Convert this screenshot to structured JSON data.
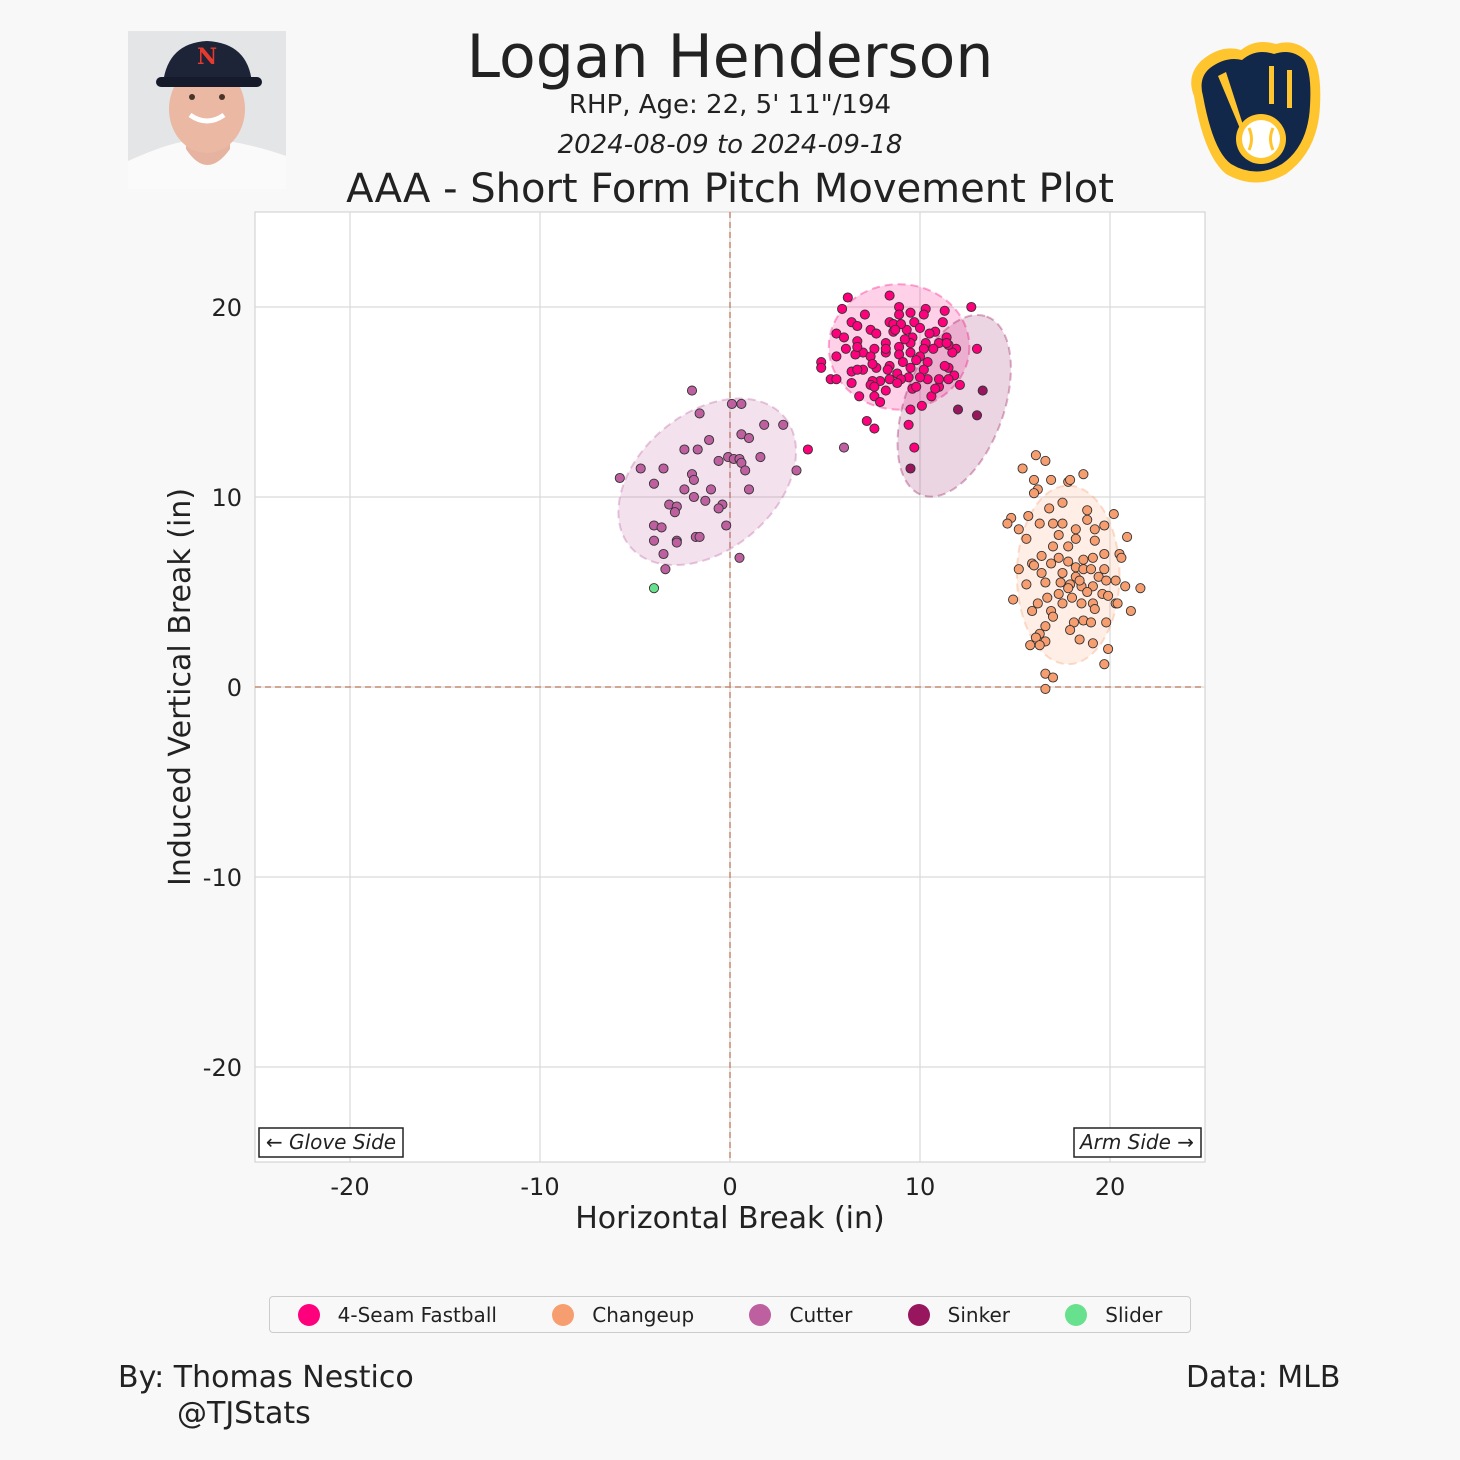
{
  "header": {
    "title": "Logan Henderson",
    "subtitle": "RHP, Age: 22, 5' 11\"/194",
    "date_range": "2024-08-09 to 2024-09-18",
    "plot_title": "AAA - Short Form Pitch Movement Plot",
    "headshot_alt": "player headshot",
    "team_logo": "Milwaukee Brewers ball-in-glove logo"
  },
  "footer": {
    "credit_line1": "By: Thomas Nestico",
    "credit_line2": "@TJStats",
    "source": "Data: MLB"
  },
  "chart_data": {
    "type": "scatter",
    "title": "AAA - Short Form Pitch Movement Plot",
    "xlabel": "Horizontal Break (in)",
    "ylabel": "Induced Vertical Break (in)",
    "xlim": [
      -25,
      25
    ],
    "ylim": [
      -25,
      25
    ],
    "xticks": [
      -20,
      -10,
      0,
      10,
      20
    ],
    "yticks": [
      -20,
      -10,
      0,
      10,
      20
    ],
    "grid": true,
    "reference_lines": {
      "x": 0,
      "y": 0,
      "color": "#c98a70"
    },
    "annotations": {
      "left": "← Glove Side",
      "right": "Arm Side →"
    },
    "legend_position": "bottom",
    "series": [
      {
        "name": "4-Seam Fastball",
        "color": "#FF007D",
        "ellipse": {
          "cx": 8.9,
          "cy": 17.9,
          "rx": 3.7,
          "ry": 3.3,
          "angle": 0
        },
        "points": [
          [
            6.2,
            20.5
          ],
          [
            8.4,
            20.6
          ],
          [
            5.9,
            19.9
          ],
          [
            12.7,
            20.0
          ],
          [
            7.1,
            19.6
          ],
          [
            6.4,
            19.2
          ],
          [
            6.7,
            19.0
          ],
          [
            5.6,
            18.6
          ],
          [
            6.0,
            18.4
          ],
          [
            4.8,
            17.1
          ],
          [
            4.8,
            16.8
          ],
          [
            5.3,
            16.2
          ],
          [
            5.6,
            16.2
          ],
          [
            5.6,
            17.4
          ],
          [
            6.1,
            17.8
          ],
          [
            6.7,
            18.2
          ],
          [
            6.4,
            16.6
          ],
          [
            6.4,
            16.0
          ],
          [
            6.8,
            15.3
          ],
          [
            7.2,
            14.0
          ],
          [
            7.6,
            13.6
          ],
          [
            7.6,
            15.3
          ],
          [
            7.9,
            15.0
          ],
          [
            8.2,
            15.6
          ],
          [
            9.5,
            14.6
          ],
          [
            9.4,
            13.8
          ],
          [
            9.7,
            12.6
          ],
          [
            10.1,
            14.8
          ],
          [
            10.6,
            15.3
          ],
          [
            11.0,
            15.8
          ],
          [
            12.1,
            15.9
          ],
          [
            13.0,
            17.8
          ],
          [
            11.8,
            16.4
          ],
          [
            11.5,
            16.8
          ],
          [
            11.9,
            17.8
          ],
          [
            11.3,
            19.8
          ],
          [
            11.2,
            19.2
          ],
          [
            10.3,
            19.9
          ],
          [
            8.9,
            20.0
          ],
          [
            7.4,
            18.8
          ],
          [
            8.4,
            19.2
          ],
          [
            8.9,
            19.6
          ],
          [
            9.5,
            19.7
          ],
          [
            10.2,
            19.6
          ],
          [
            9.7,
            19.2
          ],
          [
            9.3,
            18.8
          ],
          [
            8.6,
            18.7
          ],
          [
            7.7,
            18.6
          ],
          [
            8.2,
            18.1
          ],
          [
            8.9,
            17.9
          ],
          [
            9.6,
            18.4
          ],
          [
            10.3,
            18.1
          ],
          [
            10.8,
            18.7
          ],
          [
            11.4,
            18.4
          ],
          [
            11.0,
            18.1
          ],
          [
            10.7,
            17.8
          ],
          [
            10.2,
            17.8
          ],
          [
            9.5,
            18.1
          ],
          [
            7.6,
            17.8
          ],
          [
            7.0,
            17.6
          ],
          [
            6.6,
            17.5
          ],
          [
            7.4,
            17.4
          ],
          [
            8.2,
            17.6
          ],
          [
            8.9,
            17.5
          ],
          [
            9.5,
            17.6
          ],
          [
            10.0,
            17.4
          ],
          [
            10.4,
            17.1
          ],
          [
            9.8,
            17.2
          ],
          [
            9.1,
            17.1
          ],
          [
            8.4,
            16.9
          ],
          [
            7.7,
            16.8
          ],
          [
            7.0,
            16.7
          ],
          [
            6.7,
            16.7
          ],
          [
            7.5,
            17.0
          ],
          [
            8.3,
            16.7
          ],
          [
            8.8,
            16.5
          ],
          [
            9.5,
            16.8
          ],
          [
            10.2,
            16.7
          ],
          [
            11.3,
            16.9
          ],
          [
            11.0,
            16.2
          ],
          [
            10.4,
            16.2
          ],
          [
            10.0,
            16.3
          ],
          [
            9.4,
            16.3
          ],
          [
            9.0,
            16.2
          ],
          [
            8.4,
            16.2
          ],
          [
            7.9,
            16.1
          ],
          [
            7.5,
            16.1
          ],
          [
            7.4,
            15.9
          ],
          [
            7.6,
            15.8
          ],
          [
            8.8,
            16.0
          ],
          [
            9.6,
            15.7
          ],
          [
            9.8,
            15.8
          ],
          [
            10.8,
            15.7
          ],
          [
            11.5,
            16.2
          ],
          [
            11.7,
            17.6
          ],
          [
            11.5,
            18.0
          ],
          [
            11.4,
            18.1
          ],
          [
            8.6,
            19.1
          ],
          [
            9.0,
            19.1
          ],
          [
            10.0,
            18.9
          ],
          [
            10.5,
            18.6
          ],
          [
            9.2,
            18.3
          ],
          [
            8.7,
            18.8
          ],
          [
            8.2,
            17.8
          ],
          [
            6.7,
            17.9
          ],
          [
            4.1,
            12.5
          ]
        ]
      },
      {
        "name": "Changeup",
        "color": "#F79E70",
        "ellipse": {
          "cx": 17.8,
          "cy": 5.9,
          "rx": 2.7,
          "ry": 4.7,
          "angle": 0
        },
        "points": [
          [
            16.1,
            12.2
          ],
          [
            16.6,
            11.9
          ],
          [
            15.4,
            11.5
          ],
          [
            16.0,
            10.9
          ],
          [
            16.2,
            10.4
          ],
          [
            16.0,
            10.2
          ],
          [
            16.9,
            10.9
          ],
          [
            17.8,
            10.8
          ],
          [
            17.9,
            10.9
          ],
          [
            18.6,
            11.2
          ],
          [
            17.5,
            9.7
          ],
          [
            16.8,
            9.4
          ],
          [
            18.8,
            9.3
          ],
          [
            20.2,
            9.1
          ],
          [
            14.8,
            8.9
          ],
          [
            14.6,
            8.6
          ],
          [
            15.7,
            9.0
          ],
          [
            15.2,
            8.3
          ],
          [
            15.6,
            7.8
          ],
          [
            16.3,
            8.6
          ],
          [
            17.0,
            8.6
          ],
          [
            17.5,
            8.6
          ],
          [
            18.2,
            8.3
          ],
          [
            18.8,
            8.8
          ],
          [
            19.2,
            8.3
          ],
          [
            19.7,
            8.5
          ],
          [
            20.9,
            7.9
          ],
          [
            17.3,
            8.0
          ],
          [
            18.2,
            7.8
          ],
          [
            19.2,
            7.7
          ],
          [
            17.0,
            7.4
          ],
          [
            17.8,
            7.4
          ],
          [
            16.4,
            6.9
          ],
          [
            17.3,
            6.8
          ],
          [
            18.6,
            6.7
          ],
          [
            19.1,
            6.8
          ],
          [
            19.7,
            7.0
          ],
          [
            20.5,
            7.0
          ],
          [
            20.6,
            6.8
          ],
          [
            15.9,
            6.5
          ],
          [
            16.0,
            6.4
          ],
          [
            15.2,
            6.2
          ],
          [
            16.4,
            6.0
          ],
          [
            16.9,
            6.5
          ],
          [
            17.8,
            6.6
          ],
          [
            18.2,
            6.3
          ],
          [
            18.6,
            6.2
          ],
          [
            19.0,
            6.2
          ],
          [
            19.7,
            6.2
          ],
          [
            19.4,
            5.8
          ],
          [
            18.2,
            5.8
          ],
          [
            17.5,
            6.0
          ],
          [
            15.6,
            5.4
          ],
          [
            16.6,
            5.5
          ],
          [
            17.4,
            5.5
          ],
          [
            17.9,
            5.4
          ],
          [
            18.5,
            5.3
          ],
          [
            19.1,
            5.3
          ],
          [
            19.8,
            5.6
          ],
          [
            20.3,
            5.6
          ],
          [
            20.8,
            5.3
          ],
          [
            21.6,
            5.2
          ],
          [
            14.9,
            4.6
          ],
          [
            16.7,
            4.7
          ],
          [
            17.3,
            4.9
          ],
          [
            18.0,
            4.7
          ],
          [
            18.8,
            5.0
          ],
          [
            19.6,
            4.9
          ],
          [
            19.9,
            4.8
          ],
          [
            20.3,
            4.4
          ],
          [
            20.4,
            4.4
          ],
          [
            16.2,
            4.4
          ],
          [
            15.9,
            4.0
          ],
          [
            16.9,
            4.0
          ],
          [
            17.5,
            4.4
          ],
          [
            18.5,
            4.4
          ],
          [
            19.1,
            4.4
          ],
          [
            19.2,
            4.1
          ],
          [
            21.1,
            4.0
          ],
          [
            17.0,
            3.7
          ],
          [
            18.1,
            3.4
          ],
          [
            18.6,
            3.5
          ],
          [
            19.0,
            3.4
          ],
          [
            19.8,
            3.4
          ],
          [
            16.6,
            3.2
          ],
          [
            16.3,
            2.8
          ],
          [
            16.1,
            2.6
          ],
          [
            16.6,
            2.4
          ],
          [
            17.9,
            3.0
          ],
          [
            18.4,
            2.5
          ],
          [
            19.1,
            2.3
          ],
          [
            15.8,
            2.2
          ],
          [
            16.3,
            2.2
          ],
          [
            19.9,
            2.0
          ],
          [
            19.7,
            1.2
          ],
          [
            16.6,
            0.7
          ],
          [
            17.0,
            0.5
          ],
          [
            16.6,
            -0.1
          ],
          [
            17.8,
            5.2
          ],
          [
            18.4,
            5.6
          ]
        ]
      },
      {
        "name": "Cutter",
        "color": "#BE5FA0",
        "ellipse": {
          "cx": -1.2,
          "cy": 10.8,
          "rx": 5.3,
          "ry": 3.6,
          "angle": -40
        },
        "points": [
          [
            -2.0,
            15.6
          ],
          [
            0.1,
            14.9
          ],
          [
            0.6,
            14.9
          ],
          [
            -1.6,
            14.4
          ],
          [
            1.8,
            13.8
          ],
          [
            2.8,
            13.8
          ],
          [
            0.6,
            13.3
          ],
          [
            1.0,
            13.1
          ],
          [
            -1.1,
            13.0
          ],
          [
            -2.4,
            12.5
          ],
          [
            -1.7,
            12.5
          ],
          [
            -0.1,
            12.1
          ],
          [
            0.2,
            12.0
          ],
          [
            0.5,
            12.0
          ],
          [
            -0.6,
            11.9
          ],
          [
            1.6,
            12.1
          ],
          [
            0.6,
            11.8
          ],
          [
            0.8,
            11.4
          ],
          [
            3.5,
            11.4
          ],
          [
            -4.7,
            11.5
          ],
          [
            -3.5,
            11.5
          ],
          [
            -5.8,
            11.0
          ],
          [
            -2.0,
            11.2
          ],
          [
            -1.9,
            10.9
          ],
          [
            -4.0,
            10.7
          ],
          [
            -2.4,
            10.4
          ],
          [
            -1.0,
            10.4
          ],
          [
            1.0,
            10.4
          ],
          [
            -1.9,
            10.0
          ],
          [
            -1.3,
            9.8
          ],
          [
            -3.2,
            9.6
          ],
          [
            -2.8,
            9.5
          ],
          [
            -2.9,
            9.2
          ],
          [
            -0.4,
            9.6
          ],
          [
            -0.6,
            9.4
          ],
          [
            -0.2,
            8.5
          ],
          [
            -4.0,
            8.5
          ],
          [
            -3.6,
            8.4
          ],
          [
            -4.0,
            7.7
          ],
          [
            -2.8,
            7.7
          ],
          [
            -2.8,
            7.6
          ],
          [
            -1.8,
            7.9
          ],
          [
            -1.6,
            7.9
          ],
          [
            -3.5,
            7.0
          ],
          [
            0.5,
            6.8
          ],
          [
            -3.4,
            6.2
          ],
          [
            6.0,
            12.6
          ]
        ]
      },
      {
        "name": "Sinker",
        "color": "#98165D",
        "ellipse": {
          "cx": 11.8,
          "cy": 14.8,
          "rx": 5.0,
          "ry": 2.6,
          "angle": -70
        },
        "points": [
          [
            13.3,
            15.6
          ],
          [
            12.0,
            14.6
          ],
          [
            13.0,
            14.3
          ],
          [
            9.5,
            11.5
          ]
        ]
      },
      {
        "name": "Slider",
        "color": "#67E18D",
        "points": [
          [
            -4.0,
            5.2
          ]
        ]
      }
    ]
  }
}
